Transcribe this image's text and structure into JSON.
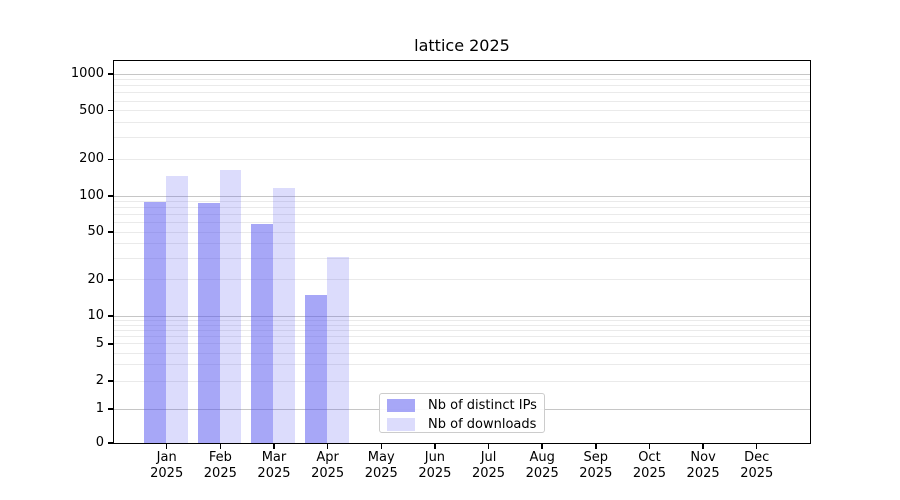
{
  "page_background": "#ffffff",
  "chart_data": {
    "type": "bar",
    "title": "lattice 2025",
    "categories": [
      "Jan 2025",
      "Feb 2025",
      "Mar 2025",
      "Apr 2025",
      "May 2025",
      "Jun 2025",
      "Jul 2025",
      "Aug 2025",
      "Sep 2025",
      "Oct 2025",
      "Nov 2025",
      "Dec 2025"
    ],
    "xtick_months": [
      "Jan",
      "Feb",
      "Mar",
      "Apr",
      "May",
      "Jun",
      "Jul",
      "Aug",
      "Sep",
      "Oct",
      "Nov",
      "Dec"
    ],
    "xtick_year": "2025",
    "series": [
      {
        "name": "Nb of distinct IPs",
        "color": "rgba(80,80,240,0.5)",
        "solid_color": "#a7a7f7",
        "values": [
          90,
          88,
          58,
          15,
          0,
          0,
          0,
          0,
          0,
          0,
          0,
          0
        ]
      },
      {
        "name": "Nb of downloads",
        "color": "rgba(80,80,240,0.2)",
        "solid_color": "#dcdcfc",
        "values": [
          146,
          163,
          117,
          31,
          0,
          0,
          0,
          0,
          0,
          0,
          0,
          0
        ]
      }
    ],
    "yscale": "symlog",
    "yticks": [
      0,
      1,
      2,
      5,
      10,
      20,
      50,
      100,
      200,
      500,
      1000
    ],
    "ylim": [
      0,
      1200
    ],
    "xlabel": "",
    "ylabel": "",
    "grid": "horizontal major (decades) + minor (2-9 per decade), drawn under semi-transparent bars",
    "legend_position": "lower center inside plot",
    "legend_border_color": "#cccccc"
  }
}
